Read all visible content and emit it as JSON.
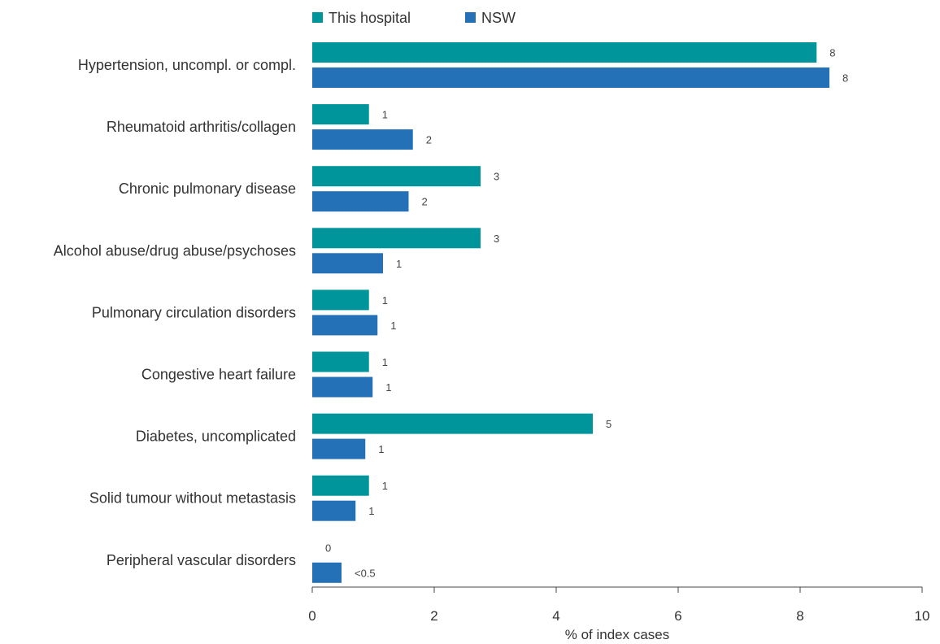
{
  "chart_data": {
    "type": "bar",
    "orientation": "horizontal",
    "categories": [
      "Hypertension, uncompl. or compl.",
      "Rheumatoid arthritis/collagen",
      "Chronic pulmonary disease",
      "Alcohol abuse/drug abuse/psychoses",
      "Pulmonary circulation disorders",
      "Congestive heart failure",
      "Diabetes, uncomplicated",
      "Solid tumour without metastasis",
      "Peripheral vascular disorders"
    ],
    "series": [
      {
        "name": "This hospital",
        "color": "#00959a",
        "values": [
          8.27,
          0.93,
          2.76,
          2.76,
          0.93,
          0.93,
          4.6,
          0.93,
          0
        ],
        "labels": [
          "8",
          "1",
          "3",
          "3",
          "1",
          "1",
          "5",
          "1",
          "0"
        ]
      },
      {
        "name": "NSW",
        "color": "#2471b8",
        "values": [
          8.48,
          1.65,
          1.58,
          1.16,
          1.07,
          0.99,
          0.87,
          0.71,
          0.48
        ],
        "labels": [
          "8",
          "2",
          "2",
          "1",
          "1",
          "1",
          "1",
          "1",
          "<0.5"
        ]
      }
    ],
    "xlabel": "% of index cases",
    "xlim": [
      0,
      10
    ],
    "xticks": [
      "0",
      "2",
      "4",
      "6",
      "8",
      "10"
    ],
    "legend": "top",
    "grid": false
  }
}
